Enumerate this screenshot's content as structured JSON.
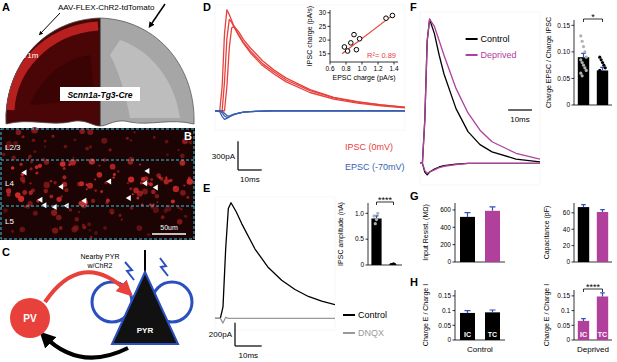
{
  "panel_labels": [
    "A",
    "B",
    "C",
    "D",
    "E",
    "F",
    "G",
    "H"
  ],
  "image_a": {
    "virus": "AAV-FLEX-ChR2-tdTomato",
    "area": "V1m",
    "mouse_line": "Scnn1a-Tg3-Cre"
  },
  "image_b": {
    "layers": [
      "L2/3",
      "L4",
      "L5"
    ],
    "scale_bar": "50um"
  },
  "diagram_c": {
    "interneuron": "PV",
    "nearby": [
      "Nearby PYR",
      "w/ChR2"
    ],
    "recorded": "PYR"
  },
  "chart_data": [
    {
      "type": "line",
      "tick_labels": false,
      "x": [
        0,
        2,
        3,
        4,
        5,
        6,
        7,
        8,
        10,
        12,
        15,
        20,
        25,
        30,
        40,
        50,
        60,
        70,
        80
      ],
      "xlim": [
        0,
        80
      ],
      "ylim": [
        -200,
        1100
      ],
      "series": [
        {
          "color": "#e8413c",
          "values": [
            0,
            0,
            250,
            800,
            1050,
            1000,
            940,
            880,
            780,
            700,
            600,
            470,
            380,
            300,
            190,
            120,
            80,
            50,
            30
          ]
        },
        {
          "color": "#e8413c",
          "values": [
            0,
            0,
            0,
            300,
            750,
            950,
            920,
            870,
            790,
            710,
            620,
            490,
            400,
            320,
            210,
            135,
            90,
            60,
            35
          ]
        },
        {
          "color": "#e8413c",
          "values": [
            0,
            0,
            0,
            0,
            250,
            650,
            860,
            880,
            820,
            740,
            650,
            520,
            420,
            340,
            220,
            140,
            95,
            62,
            38
          ]
        },
        {
          "color": "#3a5fb0",
          "values": [
            0,
            -10,
            -60,
            -90,
            -80,
            -65,
            -50,
            -40,
            -25,
            -15,
            -8,
            -3,
            0,
            0,
            0,
            0,
            0,
            0,
            0
          ]
        },
        {
          "color": "#3a5fb0",
          "values": [
            0,
            0,
            -20,
            -55,
            -70,
            -60,
            -48,
            -38,
            -25,
            -15,
            -8,
            -3,
            0,
            0,
            0,
            0,
            0,
            0,
            0
          ]
        },
        {
          "color": "#3a5fb0",
          "values": [
            0,
            0,
            -5,
            -25,
            -50,
            -55,
            -45,
            -36,
            -24,
            -15,
            -8,
            -3,
            0,
            0,
            0,
            0,
            0,
            0,
            0
          ]
        }
      ],
      "annotations": [
        {
          "text": "IPSC (0mV)",
          "color": "#e8413c"
        },
        {
          "text": "EPSC (-70mV)",
          "color": "#3a5fb0"
        }
      ],
      "scale_bar": {
        "x": 10,
        "x_label": "10ms",
        "y": 300,
        "y_label": "300pA"
      }
    },
    {
      "type": "scatter",
      "marker": "circle",
      "color": "#000000",
      "x": [
        0.78,
        0.82,
        0.86,
        0.9,
        0.93,
        0.97,
        1.3,
        1.38
      ],
      "values": [
        17.5,
        16,
        19,
        22,
        16.5,
        20.5,
        28,
        29
      ],
      "xlim": [
        0.6,
        1.45
      ],
      "ylim": [
        12,
        31
      ],
      "xticks": [
        0.6,
        0.8,
        {
          "value": 1,
          "label": "1.0"
        },
        1.2,
        1.4
      ],
      "yticks": [
        15,
        20,
        25,
        30
      ],
      "x_label": "EPSC charge (pA/s)",
      "y_label": "IPSC charge (pA/s)",
      "fit": {
        "x": [
          0.75,
          1.4
        ],
        "values": [
          15,
          29.5
        ],
        "color": "#e8413c"
      },
      "annotation": "R²= 0.89"
    },
    {
      "type": "line",
      "tick_labels": false,
      "legend": "right",
      "x": [
        0,
        2,
        3,
        4,
        5,
        6,
        8,
        10,
        15,
        20,
        25,
        30,
        35,
        40,
        45
      ],
      "xlim": [
        0,
        45
      ],
      "ylim": [
        -100,
        1050
      ],
      "series": [
        {
          "name": "Control",
          "color": "#000000",
          "values": [
            0,
            0,
            100,
            600,
            950,
            1000,
            920,
            820,
            600,
            440,
            330,
            250,
            190,
            150,
            120
          ]
        },
        {
          "name": "DNQX",
          "color": "#999999",
          "values": [
            0,
            0,
            -40,
            10,
            0,
            0,
            0,
            0,
            0,
            0,
            0,
            0,
            0,
            0,
            0
          ]
        }
      ],
      "scale_bar": {
        "x": 10,
        "x_label": "10ms",
        "y": 200,
        "y_label": "200pA"
      }
    },
    {
      "type": "bar",
      "categories": [
        null,
        null
      ],
      "values": [
        0.9,
        0.01
      ],
      "errors": [
        0.05,
        0.005
      ],
      "colors": [
        "#000000",
        "#888888"
      ],
      "points": [
        [
          0.95,
          0.8,
          0.88,
          1.0
        ],
        [
          0.01,
          0.01,
          0.02,
          0.01
        ]
      ],
      "ylim": [
        0,
        1.2
      ],
      "yticks": [
        0,
        0.5,
        {
          "value": 1,
          "label": "1.0"
        }
      ],
      "y_label": "IPSC amplitude (nA)",
      "annotation": "****"
    },
    {
      "type": "line",
      "tick_labels": false,
      "legend": "top",
      "x": [
        0,
        1,
        2,
        3,
        4,
        6,
        8,
        10,
        15,
        20,
        25,
        30,
        40,
        50
      ],
      "xlim": [
        0,
        50
      ],
      "ylim": [
        -0.15,
        1.05
      ],
      "series": [
        {
          "name": "Control",
          "color": "#000000",
          "values": [
            0,
            0,
            0.3,
            0.85,
            1.0,
            0.9,
            0.75,
            0.62,
            0.38,
            0.22,
            0.13,
            0.08,
            0.03,
            0.01
          ]
        },
        {
          "name": "Deprived",
          "color": "#b0409c",
          "values": [
            0,
            0,
            0.3,
            0.85,
            1.0,
            0.95,
            0.85,
            0.75,
            0.52,
            0.35,
            0.23,
            0.15,
            0.07,
            0.03
          ]
        },
        {
          "color": "#000000",
          "values": [
            0,
            0,
            -0.06,
            -0.08,
            -0.06,
            -0.04,
            -0.025,
            -0.015,
            -0.005,
            0,
            0,
            0,
            0,
            0
          ]
        },
        {
          "color": "#b0409c",
          "values": [
            0,
            0,
            -0.05,
            -0.07,
            -0.06,
            -0.045,
            -0.03,
            -0.02,
            -0.008,
            0,
            0,
            0,
            0,
            0
          ]
        }
      ],
      "scale_bar": {
        "x": 10,
        "x_label": "10ms"
      }
    },
    {
      "type": "bar",
      "categories": [
        null,
        null
      ],
      "values": [
        0.09,
        0.065
      ],
      "errors": [
        0.007,
        0.006
      ],
      "colors": [
        "#000000",
        "#000000"
      ],
      "points": [
        [
          0.13,
          0.12,
          0.11,
          0.1,
          0.09,
          0.085,
          0.08,
          0.075,
          0.07,
          0.065,
          0.06,
          0.055
        ],
        [
          0.09,
          0.085,
          0.08,
          0.075,
          0.07,
          0.065,
          0.06,
          0.055,
          0.05,
          0.045,
          0.04
        ]
      ],
      "ylim": [
        0,
        0.16
      ],
      "yticks": [
        0,
        0.05,
        {
          "value": 0.1,
          "label": "0.10"
        },
        0.15
      ],
      "y_label": "Charge EPSC / Charge IPSC",
      "annotation": "*"
    },
    {
      "type": "bar",
      "categories": [
        null,
        null
      ],
      "values": [
        520,
        590
      ],
      "errors": [
        50,
        45
      ],
      "colors": [
        "#000000",
        "#b0409c"
      ],
      "ylim": [
        0,
        680
      ],
      "yticks": [
        0,
        200,
        400,
        600
      ],
      "y_label": "Input Resist. (MΩ)"
    },
    {
      "type": "bar",
      "categories": [
        null,
        null
      ],
      "values": [
        67,
        61
      ],
      "errors": [
        3,
        3
      ],
      "colors": [
        "#000000",
        "#b0409c"
      ],
      "ylim": [
        0,
        72
      ],
      "yticks": [
        0,
        20,
        40,
        60
      ],
      "y_label": "Capacitance (pF)"
    },
    {
      "type": "bar",
      "categories": [
        "IC",
        "TC"
      ],
      "values": [
        0.092,
        0.094
      ],
      "errors": [
        0.008,
        0.008
      ],
      "colors": [
        "#000000",
        "#000000"
      ],
      "ylim": [
        0,
        0.17
      ],
      "yticks": [
        0,
        0.05,
        0.1,
        0.15
      ],
      "y_label": "Charge E / Charge I",
      "x_label": "Control"
    },
    {
      "type": "bar",
      "categories": [
        "IC",
        "TC"
      ],
      "values": [
        0.065,
        0.148
      ],
      "errors": [
        0.008,
        0.012
      ],
      "colors": [
        "#b0409c",
        "#b0409c"
      ],
      "ylim": [
        0,
        0.17
      ],
      "yticks": [
        0,
        0.05,
        0.1,
        0.15
      ],
      "y_label": "Charge E / Charge I",
      "x_label": "Deprived",
      "annotation": "****"
    }
  ]
}
